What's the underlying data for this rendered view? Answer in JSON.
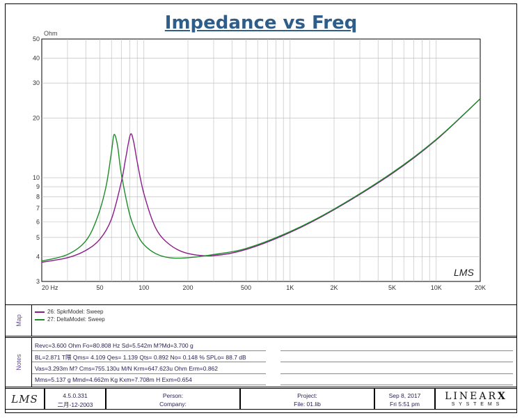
{
  "chart_data": {
    "type": "line",
    "title": "Impedance vs Freq",
    "ylabel": "Ohm",
    "x_scale": "log",
    "y_scale": "log",
    "xlim": [
      20,
      20000
    ],
    "ylim": [
      3,
      50
    ],
    "x_ticks": [
      20,
      50,
      100,
      200,
      500,
      1000,
      2000,
      5000,
      10000,
      20000
    ],
    "x_tick_labels": [
      "20 Hz",
      "50",
      "100",
      "200",
      "500",
      "1K",
      "2K",
      "5K",
      "10K",
      "20K"
    ],
    "y_ticks": [
      3,
      4,
      5,
      6,
      7,
      8,
      9,
      10,
      20,
      30,
      40,
      50
    ],
    "y_tick_labels": [
      "3",
      "4",
      "5",
      "6",
      "7",
      "8",
      "9",
      "10",
      "20",
      "30",
      "40",
      "50"
    ],
    "grid": true,
    "series": [
      {
        "name": "26: SpkrModel: Sweep",
        "color": "#8a1a8a",
        "x": [
          20,
          30,
          40,
          50,
          60,
          70,
          75,
          80.8,
          85,
          90,
          100,
          120,
          150,
          200,
          300,
          500,
          1000,
          2000,
          5000,
          10000,
          20000
        ],
        "y": [
          3.75,
          3.95,
          4.3,
          4.9,
          6.2,
          9.5,
          12.5,
          16.5,
          15.2,
          12.0,
          8.3,
          5.6,
          4.6,
          4.15,
          4.05,
          4.35,
          5.3,
          6.9,
          10.5,
          15.5,
          25
        ]
      },
      {
        "name": "27: DeltaModel: Sweep",
        "color": "#1c8c28",
        "x": [
          20,
          30,
          40,
          48,
          55,
          60,
          62.5,
          66,
          70,
          80,
          90,
          100,
          120,
          150,
          200,
          300,
          500,
          1000,
          2000,
          5000,
          10000,
          20000
        ],
        "y": [
          3.8,
          4.1,
          4.8,
          6.3,
          9.0,
          13.5,
          16.5,
          14.5,
          10.5,
          6.5,
          5.2,
          4.6,
          4.15,
          3.95,
          3.95,
          4.1,
          4.4,
          5.35,
          6.95,
          10.6,
          15.6,
          25
        ]
      }
    ]
  },
  "watermark": "LMS",
  "legend_side_label": "Map",
  "notes_side_label": "Notes",
  "notes": [
    "Revc=3.600 Ohm  Fo=80.808 Hz  Sd=5.542m M?Md=3.700 g",
    "BL=2.871 T隈  Qms= 4.109  Qes= 1.139  Qts= 0.892  No= 0.148 %  SPLo= 88.7 dB",
    "Vas=3.293m M? Cms=755.130u M/N  Krm=647.623u Ohm  Erm=0.862",
    "Mms=5.137 g  Mmd=4.662m Kg  Kxm=7.708m H  Exm=0.654"
  ],
  "footer": {
    "logo": "LMS",
    "version": "4.5.0.331",
    "version_date": "二月-12-2003",
    "person_label": "Person:",
    "company_label": "Company:",
    "project_label": "Project:",
    "file_label": "File: 01.lib",
    "date": "Sep  8, 2017",
    "time": "Fri  5:51 pm",
    "brand_top": "LINEAR",
    "brand_x": "X",
    "brand_bottom": "S Y S T E M S"
  }
}
